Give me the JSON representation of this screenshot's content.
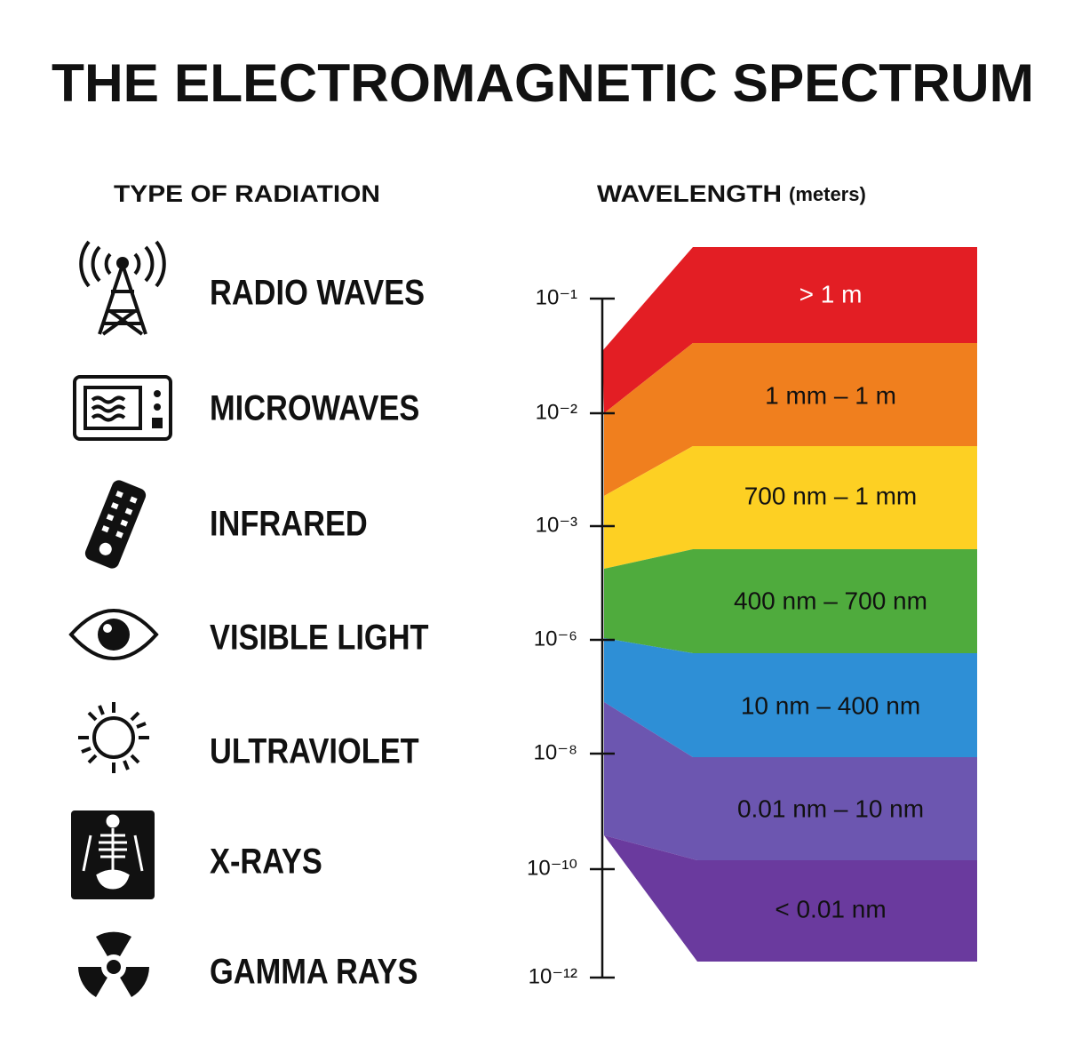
{
  "title": "THE ELECTROMAGNETIC SPECTRUM",
  "headers": {
    "type": "TYPE OF RADIATION",
    "wavelength": "WAVELENGTH",
    "unit": "(meters)"
  },
  "radiation": [
    "RADIO WAVES",
    "MICROWAVES",
    "INFRARED",
    "VISIBLE LIGHT",
    "ULTRAVIOLET",
    "X-RAYS",
    "GAMMA RAYS"
  ],
  "axis_ticks": [
    "10⁻¹",
    "10⁻²",
    "10⁻³",
    "10⁻⁶",
    "10⁻⁸",
    "10⁻¹⁰",
    "10⁻¹²"
  ],
  "bands": [
    "> 1 m",
    "1 mm – 1 m",
    "700 nm – 1 mm",
    "400 nm – 700 nm",
    "10 nm – 400 nm",
    "0.01 nm – 10 nm",
    "< 0.01 nm"
  ]
}
